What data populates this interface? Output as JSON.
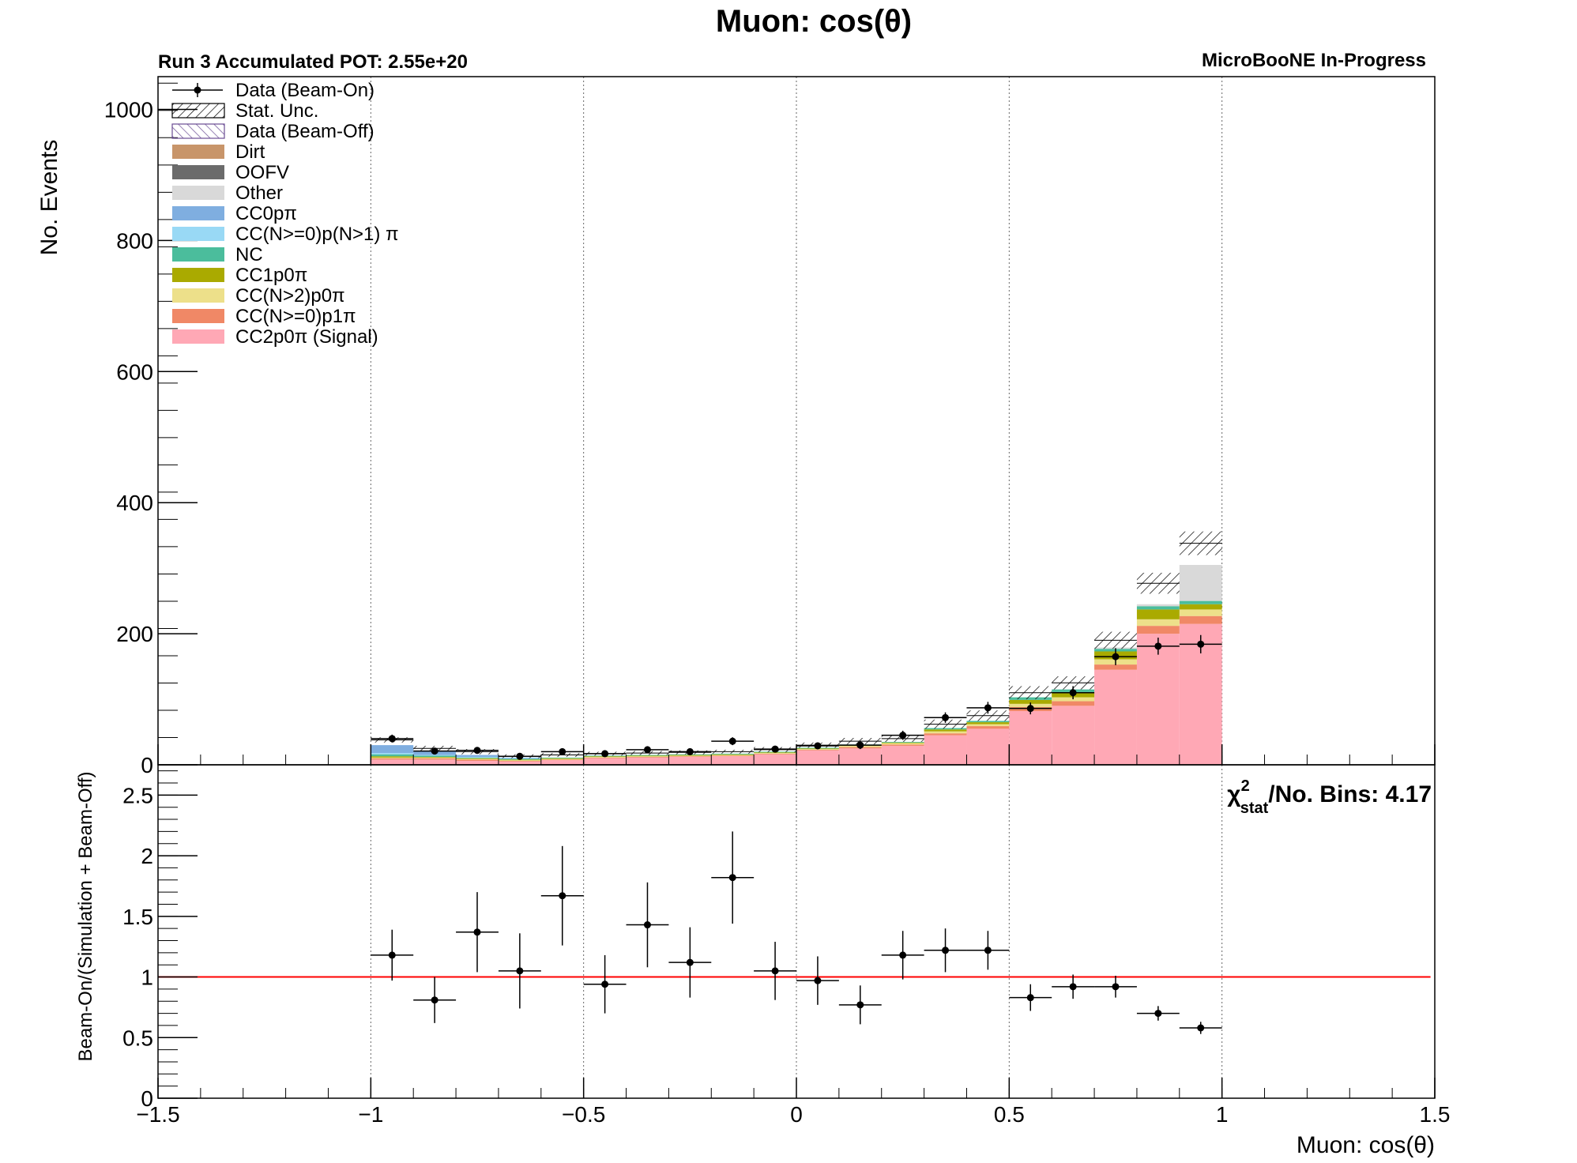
{
  "chart_data": [
    {
      "type": "bar",
      "stacked": true,
      "title": "Muon: cos(θ)",
      "subtitle_left": "Run 3 Accumulated POT: 2.55e+20",
      "subtitle_right": "MicroBooNE In-Progress",
      "ylabel": "No. Events",
      "xlim": [
        -1.5,
        1.5
      ],
      "ylim": [
        0,
        1050
      ],
      "x_ticks": [
        "−1.5",
        "−1",
        "−0.5",
        "0",
        "0.5",
        "1",
        "1.5"
      ],
      "x_tick_values": [
        -1.5,
        -1,
        -0.5,
        0,
        0.5,
        1,
        1.5
      ],
      "y_ticks": [
        "0",
        "200",
        "400",
        "600",
        "800",
        "1000"
      ],
      "y_tick_values": [
        0,
        200,
        400,
        600,
        800,
        1000
      ],
      "grid": "vertical dotted lines at major x ticks",
      "legend_position": "top-left",
      "bin_edges": [
        -1.0,
        -0.9,
        -0.8,
        -0.7,
        -0.6,
        -0.5,
        -0.4,
        -0.3,
        -0.2,
        -0.1,
        0.0,
        0.1,
        0.2,
        0.3,
        0.4,
        0.5,
        0.6,
        0.7,
        0.8,
        0.9,
        1.0
      ],
      "legend": [
        {
          "label": "Data (Beam-On)",
          "kind": "marker"
        },
        {
          "label": "Stat. Unc.",
          "kind": "hatch",
          "color": "#000000"
        },
        {
          "label": "Data (Beam-Off)",
          "kind": "hatch",
          "color": "#6a4c93"
        },
        {
          "label": "Dirt",
          "kind": "fill",
          "color": "#c8956a"
        },
        {
          "label": "OOFV",
          "kind": "fill",
          "color": "#6b6b6b"
        },
        {
          "label": "Other",
          "kind": "fill",
          "color": "#d9d9d9"
        },
        {
          "label": "CC0pπ",
          "kind": "fill",
          "color": "#7faee0"
        },
        {
          "label": "CC(N>=0)p(N>1) π",
          "kind": "fill",
          "color": "#99d9f5"
        },
        {
          "label": "NC",
          "kind": "fill",
          "color": "#4bbd9c"
        },
        {
          "label": "CC1p0π",
          "kind": "fill",
          "color": "#aaaa00"
        },
        {
          "label": "CC(N>2)p0π",
          "kind": "fill",
          "color": "#ede08a"
        },
        {
          "label": "CC(N>=0)p1π",
          "kind": "fill",
          "color": "#f08866"
        },
        {
          "label": "CC2p0π (Signal)",
          "kind": "fill",
          "color": "#ffa8b5"
        }
      ],
      "series": [
        {
          "name": "CC2p0π (Signal)",
          "color": "#ffa8b5",
          "values": [
            8,
            8,
            6,
            5,
            7,
            10,
            11,
            12,
            13,
            16,
            22,
            25,
            29,
            45,
            55,
            82,
            90,
            145,
            200,
            215
          ]
        },
        {
          "name": "CC(N>=0)p1π",
          "color": "#f08866",
          "values": [
            2,
            2,
            2,
            1,
            1,
            1,
            1,
            1,
            1,
            1,
            1,
            2,
            2,
            3,
            4,
            6,
            7,
            8,
            12,
            12
          ]
        },
        {
          "name": "CC(N>2)p0π",
          "color": "#ede08a",
          "values": [
            1,
            1,
            1,
            1,
            1,
            1,
            1,
            1,
            1,
            1,
            1,
            2,
            2,
            3,
            3,
            5,
            6,
            8,
            10,
            10
          ]
        },
        {
          "name": "CC1p0π",
          "color": "#aaaa00",
          "values": [
            2,
            1,
            1,
            1,
            1,
            1,
            1,
            1,
            1,
            1,
            1,
            1,
            1,
            3,
            3,
            6,
            8,
            12,
            15,
            8
          ]
        },
        {
          "name": "NC",
          "color": "#4bbd9c",
          "values": [
            3,
            2,
            1,
            1,
            1,
            1,
            1,
            1,
            1,
            1,
            1,
            1,
            1,
            2,
            2,
            4,
            4,
            4,
            5,
            5
          ]
        },
        {
          "name": "CC(N>=0)p(N>1) π",
          "color": "#99d9f5",
          "values": [
            2,
            1,
            1,
            1,
            0,
            0,
            0,
            0,
            0,
            0,
            0,
            0,
            0,
            0,
            0,
            0,
            0,
            0,
            0,
            0
          ]
        },
        {
          "name": "CC0pπ",
          "color": "#7faee0",
          "values": [
            12,
            6,
            3,
            1,
            0,
            0,
            0,
            0,
            0,
            0,
            0,
            0,
            0,
            0,
            0,
            0,
            0,
            0,
            0,
            0
          ]
        },
        {
          "name": "Other",
          "color": "#d9d9d9",
          "values": [
            0,
            0,
            0,
            0,
            0,
            0,
            0,
            0,
            0,
            0,
            0,
            0,
            0,
            0,
            0,
            0,
            0,
            2,
            3,
            55
          ]
        },
        {
          "name": "OOFV",
          "color": "#6b6b6b",
          "values": [
            0,
            0,
            0,
            0,
            0,
            0,
            0,
            0,
            0,
            0,
            0,
            0,
            0,
            0,
            0,
            0,
            0,
            0,
            0,
            0
          ]
        },
        {
          "name": "Dirt",
          "color": "#c8956a",
          "values": [
            0,
            0,
            0,
            0,
            0,
            0,
            0,
            0,
            0,
            0,
            0,
            0,
            0,
            0,
            0,
            0,
            0,
            0,
            0,
            0
          ]
        }
      ],
      "stat_unc_totals": [
        38,
        25,
        20,
        13,
        15,
        17,
        18,
        19,
        20,
        23,
        30,
        36,
        40,
        62,
        75,
        110,
        125,
        190,
        277,
        338
      ],
      "stat_unc_halfwidth": [
        4,
        4,
        4,
        3,
        3,
        3,
        3,
        3,
        3,
        4,
        4,
        5,
        5,
        7,
        8,
        10,
        10,
        13,
        16,
        18
      ],
      "data_beam_on": {
        "name": "Data (Beam-On)",
        "values": [
          40,
          21,
          22,
          13,
          20,
          17,
          23,
          20,
          36,
          24,
          29,
          30,
          45,
          72,
          87,
          86,
          110,
          165,
          181,
          184
        ],
        "errors": [
          6,
          5,
          5,
          4,
          5,
          4,
          5,
          5,
          6,
          5,
          5,
          6,
          7,
          8,
          9,
          9,
          10,
          13,
          13,
          14
        ]
      }
    },
    {
      "type": "scatter",
      "ylabel": "Beam-On/(Simulation + Beam-Off)",
      "xlabel": "Muon: cos(θ)",
      "xlim": [
        -1.5,
        1.5
      ],
      "ylim": [
        0,
        2.75
      ],
      "x_ticks": [
        "−1.5",
        "−1",
        "−0.5",
        "0",
        "0.5",
        "1",
        "1.5"
      ],
      "x_tick_values": [
        -1.5,
        -1,
        -0.5,
        0,
        0.5,
        1,
        1.5
      ],
      "y_ticks": [
        "0",
        "0.5",
        "1",
        "1.5",
        "2",
        "2.5"
      ],
      "y_tick_values": [
        0,
        0.5,
        1,
        1.5,
        2,
        2.5
      ],
      "reference_line": {
        "y": 1,
        "color": "#ff0000"
      },
      "annotation": {
        "chi": "χ",
        "sup": "2",
        "sub": "stat",
        "rest": "/No. Bins: 4.17"
      },
      "x": [
        -0.95,
        -0.85,
        -0.75,
        -0.65,
        -0.55,
        -0.45,
        -0.35,
        -0.25,
        -0.15,
        -0.05,
        0.05,
        0.15,
        0.25,
        0.35,
        0.45,
        0.55,
        0.65,
        0.75,
        0.85,
        0.95
      ],
      "x_halfwidth": 0.05,
      "values": [
        1.18,
        0.81,
        1.37,
        1.05,
        1.67,
        0.94,
        1.43,
        1.12,
        1.82,
        1.05,
        0.97,
        0.77,
        1.18,
        1.22,
        1.22,
        0.83,
        0.92,
        0.92,
        0.7,
        0.58
      ],
      "errors": [
        0.21,
        0.19,
        0.33,
        0.31,
        0.41,
        0.24,
        0.35,
        0.29,
        0.38,
        0.24,
        0.2,
        0.16,
        0.2,
        0.18,
        0.16,
        0.11,
        0.1,
        0.09,
        0.06,
        0.05
      ]
    }
  ]
}
